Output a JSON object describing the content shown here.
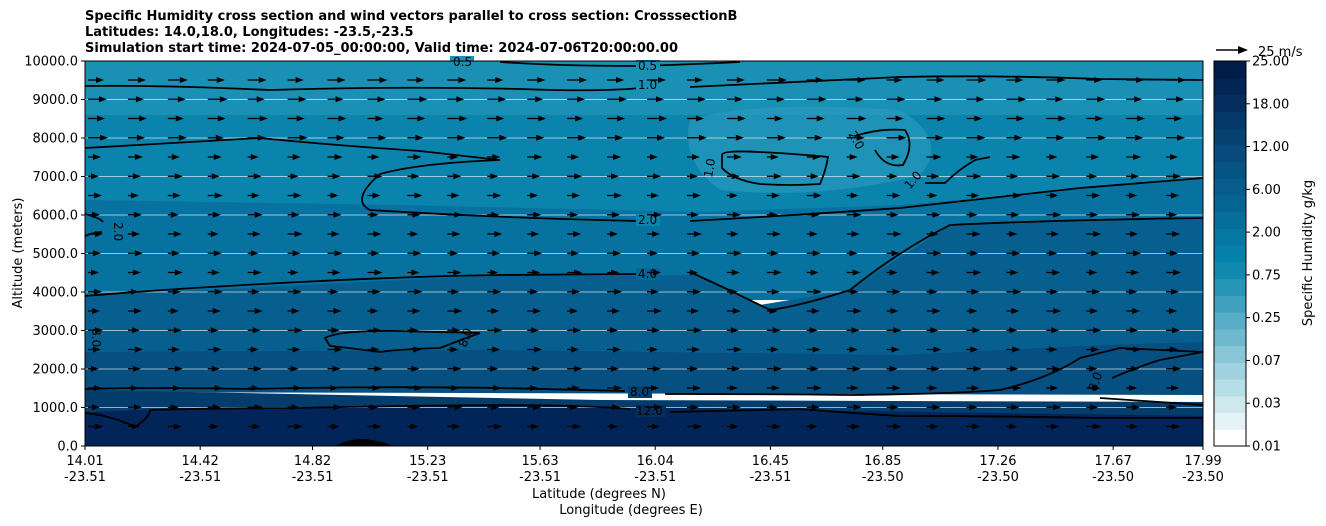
{
  "chart_data": {
    "type": "contourf",
    "title_lines": [
      "Specific Humidity cross section and wind vectors parallel to cross section: CrosssectionB",
      "Latitudes: 14.0,18.0, Longitudes: -23.5,-23.5",
      "Simulation start time: 2024-07-05_00:00:00, Valid time: 2024-07-06T20:00:00.00"
    ],
    "ylabel": "Altitude (meters)",
    "xlabel_lat": "Latitude (degrees N)",
    "xlabel_lon": "Longitude (degrees E)",
    "ylim": [
      0,
      10000
    ],
    "yticks": [
      "0.0",
      "1000.0",
      "2000.0",
      "3000.0",
      "4000.0",
      "5000.0",
      "6000.0",
      "7000.0",
      "8000.0",
      "9000.0",
      "10000.0"
    ],
    "xticks": [
      {
        "lat": "14.01",
        "lon": "-23.51"
      },
      {
        "lat": "14.42",
        "lon": "-23.51"
      },
      {
        "lat": "14.82",
        "lon": "-23.51"
      },
      {
        "lat": "15.23",
        "lon": "-23.51"
      },
      {
        "lat": "15.63",
        "lon": "-23.51"
      },
      {
        "lat": "16.04",
        "lon": "-23.51"
      },
      {
        "lat": "16.45",
        "lon": "-23.51"
      },
      {
        "lat": "16.85",
        "lon": "-23.50"
      },
      {
        "lat": "17.26",
        "lon": "-23.50"
      },
      {
        "lat": "17.67",
        "lon": "-23.50"
      },
      {
        "lat": "17.99",
        "lon": "-23.50"
      }
    ],
    "colorbar": {
      "label": "Specific Humidity g/kg",
      "ticks": [
        "0.01",
        "0.03",
        "0.07",
        "0.25",
        "0.75",
        "2.00",
        "6.00",
        "12.00",
        "18.00",
        "25.00"
      ],
      "colors": [
        "#ffffff",
        "#e6f3f6",
        "#cfe8ee",
        "#b7dde7",
        "#a0d1df",
        "#88c5d7",
        "#6fb9cf",
        "#57adc6",
        "#3fa1be",
        "#2796b6",
        "#1189ae",
        "#0381aa",
        "#0577a3",
        "#066e9b",
        "#076593",
        "#085c8c",
        "#075384",
        "#074a7b",
        "#054171",
        "#043868",
        "#032e5e",
        "#022553",
        "#011c49"
      ]
    },
    "contour_labels": [
      "0.5",
      "1.0",
      "2.0",
      "4.0",
      "8.0",
      "12.0"
    ],
    "wind_key": {
      "label": "25 m/s",
      "speed": 25
    },
    "grid": true
  }
}
